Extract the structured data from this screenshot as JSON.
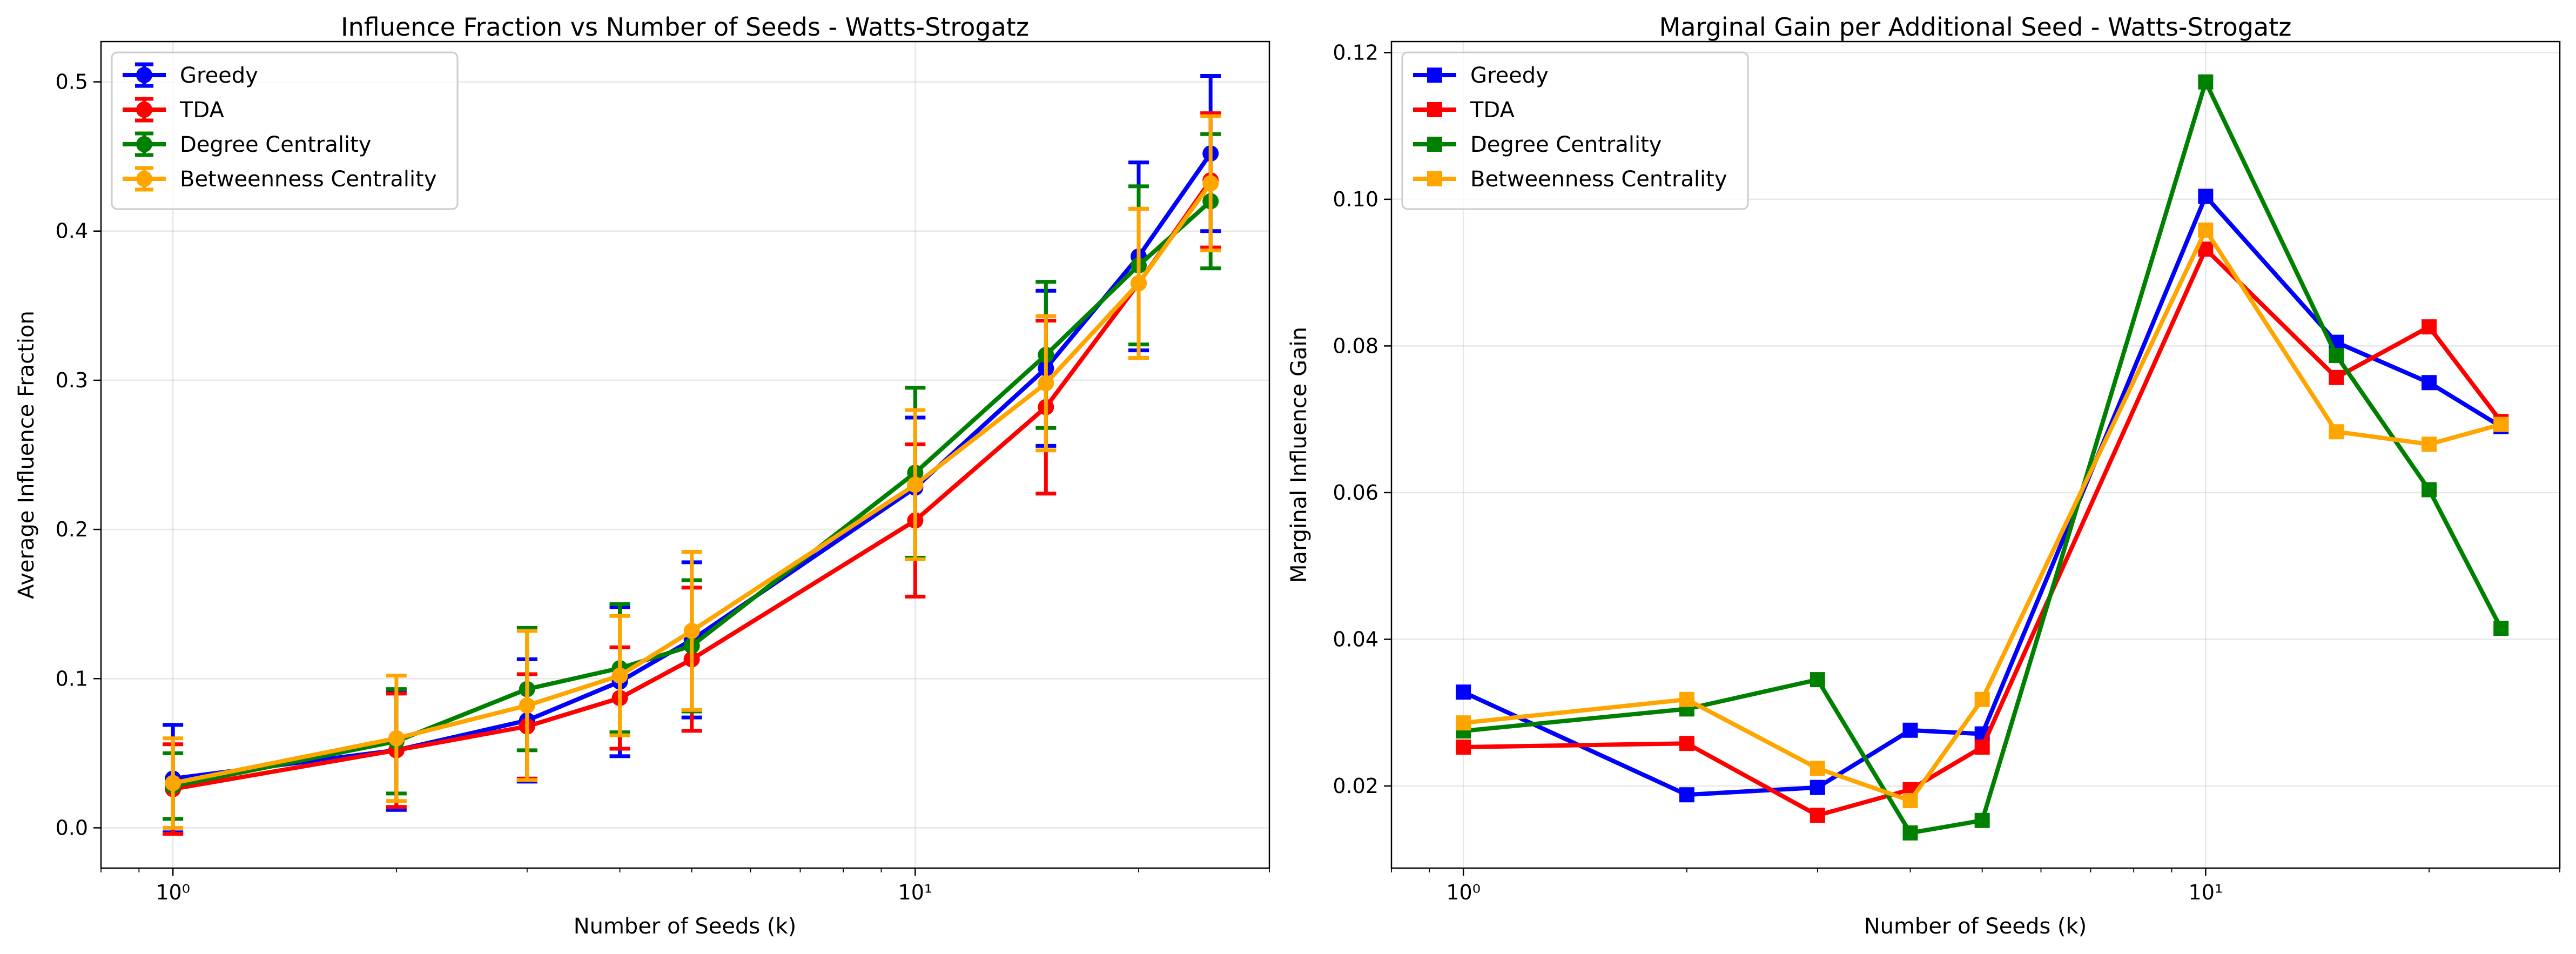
{
  "chart_data": [
    {
      "type": "line",
      "title": "Influence Fraction vs Number of Seeds - Watts-Strogatz",
      "xlabel": "Number of Seeds (k)",
      "ylabel": "Average Influence Fraction",
      "xscale": "log",
      "xlim": [
        0.8,
        30
      ],
      "ylim": [
        -0.027,
        0.527
      ],
      "x": [
        1,
        2,
        3,
        4,
        5,
        10,
        15,
        20,
        25
      ],
      "xticks": [
        1,
        10
      ],
      "xtick_labels": [
        "10⁰",
        "10¹"
      ],
      "yticks": [
        0.0,
        0.1,
        0.2,
        0.3,
        0.4,
        0.5
      ],
      "ytick_labels": [
        "0.0",
        "0.1",
        "0.2",
        "0.3",
        "0.4",
        "0.5"
      ],
      "grid": true,
      "legend_position": "top-left",
      "marker": "circle",
      "error_bars": true,
      "series": [
        {
          "name": "Greedy",
          "color": "#0000ff",
          "values": [
            0.033,
            0.052,
            0.072,
            0.098,
            0.126,
            0.228,
            0.308,
            0.383,
            0.452
          ],
          "errors": [
            0.036,
            0.04,
            0.041,
            0.05,
            0.052,
            0.047,
            0.052,
            0.063,
            0.052
          ]
        },
        {
          "name": "TDA",
          "color": "#ff0000",
          "values": [
            0.026,
            0.052,
            0.068,
            0.087,
            0.113,
            0.206,
            0.282,
            0.365,
            0.434
          ],
          "errors": [
            0.03,
            0.038,
            0.035,
            0.034,
            0.048,
            0.051,
            0.058,
            0.05,
            0.045
          ]
        },
        {
          "name": "Degree Centrality",
          "color": "#008000",
          "values": [
            0.028,
            0.058,
            0.093,
            0.107,
            0.122,
            0.238,
            0.317,
            0.377,
            0.42
          ],
          "errors": [
            0.022,
            0.035,
            0.041,
            0.043,
            0.044,
            0.057,
            0.049,
            0.053,
            0.045
          ]
        },
        {
          "name": "Betweenness Centrality",
          "color": "#ffa500",
          "values": [
            0.03,
            0.06,
            0.082,
            0.102,
            0.132,
            0.23,
            0.298,
            0.365,
            0.432
          ],
          "errors": [
            0.03,
            0.042,
            0.05,
            0.04,
            0.053,
            0.05,
            0.045,
            0.05,
            0.045
          ]
        }
      ]
    },
    {
      "type": "line",
      "title": "Marginal Gain per Additional Seed - Watts-Strogatz",
      "xlabel": "Number of Seeds (k)",
      "ylabel": "Marginal Influence Gain",
      "xscale": "log",
      "xlim": [
        0.8,
        30
      ],
      "ylim": [
        0.0088,
        0.1215
      ],
      "x": [
        1,
        2,
        3,
        4,
        5,
        10,
        15,
        20,
        25
      ],
      "xticks": [
        1,
        10
      ],
      "xtick_labels": [
        "10⁰",
        "10¹"
      ],
      "yticks": [
        0.02,
        0.04,
        0.06,
        0.08,
        0.1,
        0.12
      ],
      "ytick_labels": [
        "0.02",
        "0.04",
        "0.06",
        "0.08",
        "0.10",
        "0.12"
      ],
      "grid": true,
      "legend_position": "top-left",
      "marker": "square",
      "series": [
        {
          "name": "Greedy",
          "color": "#0000ff",
          "values": [
            0.0328,
            0.0188,
            0.0198,
            0.0276,
            0.0271,
            0.1004,
            0.0805,
            0.075,
            0.069
          ]
        },
        {
          "name": "TDA",
          "color": "#ff0000",
          "values": [
            0.0253,
            0.0258,
            0.016,
            0.0195,
            0.0253,
            0.0932,
            0.0757,
            0.0826,
            0.0697
          ]
        },
        {
          "name": "Degree Centrality",
          "color": "#008000",
          "values": [
            0.0275,
            0.0305,
            0.0345,
            0.0136,
            0.0153,
            0.116,
            0.0787,
            0.0604,
            0.0415
          ]
        },
        {
          "name": "Betweenness Centrality",
          "color": "#ffa500",
          "values": [
            0.0286,
            0.0318,
            0.0224,
            0.018,
            0.0318,
            0.0958,
            0.0683,
            0.0666,
            0.0693
          ]
        }
      ]
    }
  ]
}
